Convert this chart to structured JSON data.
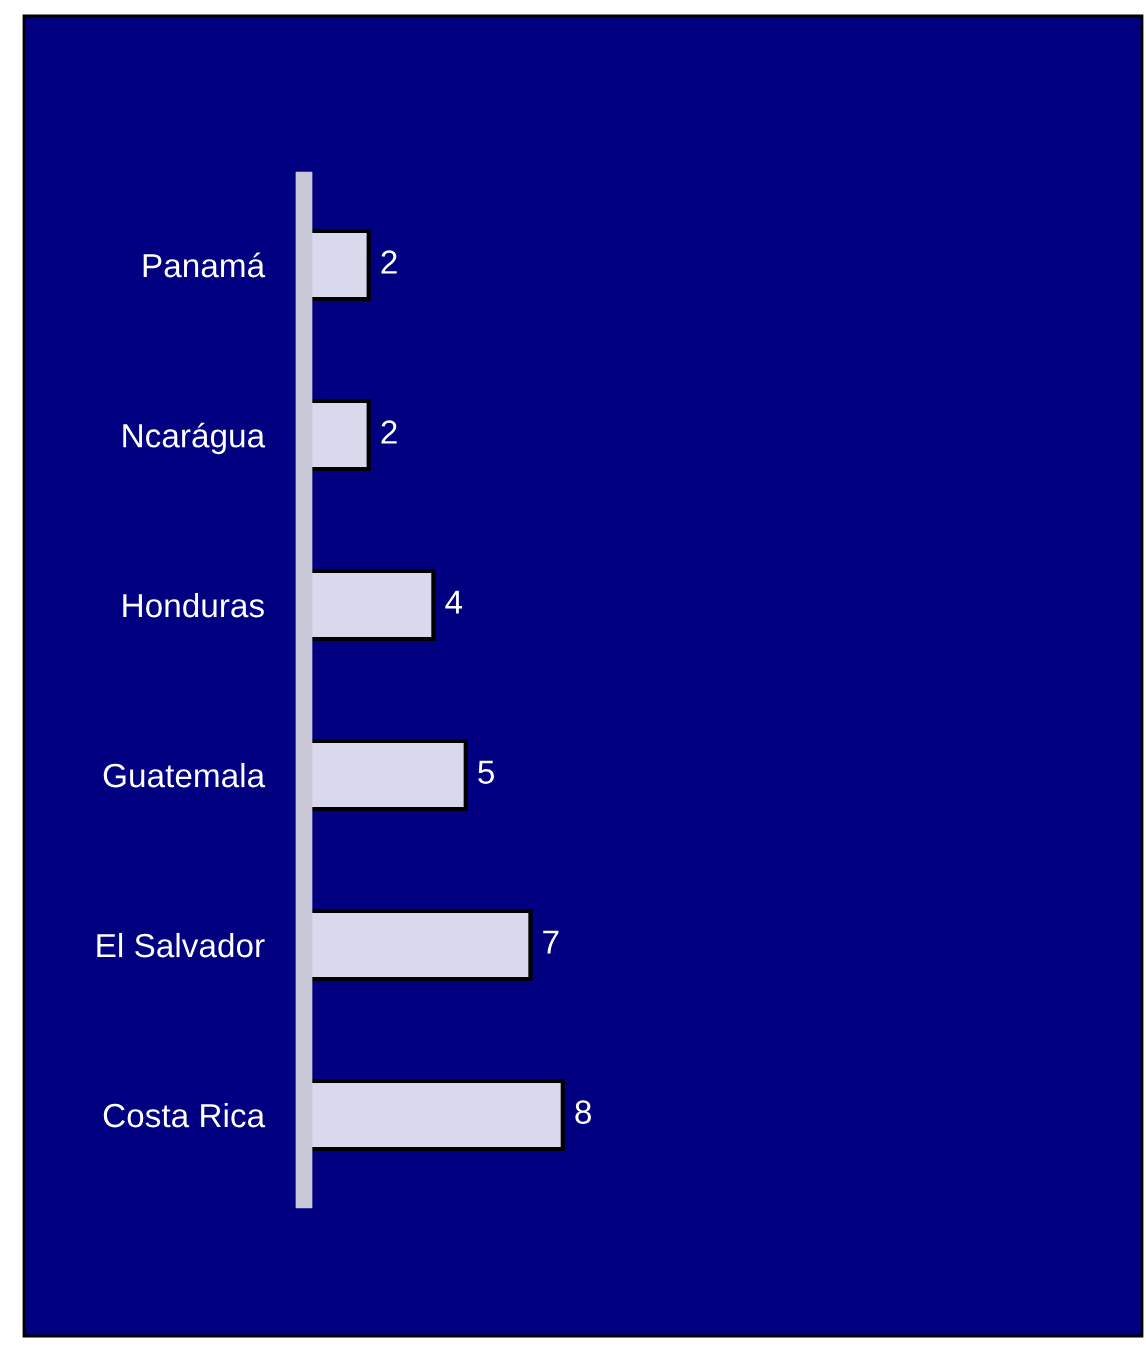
{
  "chart_data": {
    "type": "bar",
    "orientation": "horizontal",
    "categories": [
      "Panamá",
      "Ncarágua",
      "Honduras",
      "Guatemala",
      "El Salvador",
      "Costa Rica"
    ],
    "values": [
      2,
      2,
      4,
      5,
      7,
      8
    ],
    "color": "#d9d9ee",
    "data_labels": true,
    "grid": false,
    "legend": false
  }
}
